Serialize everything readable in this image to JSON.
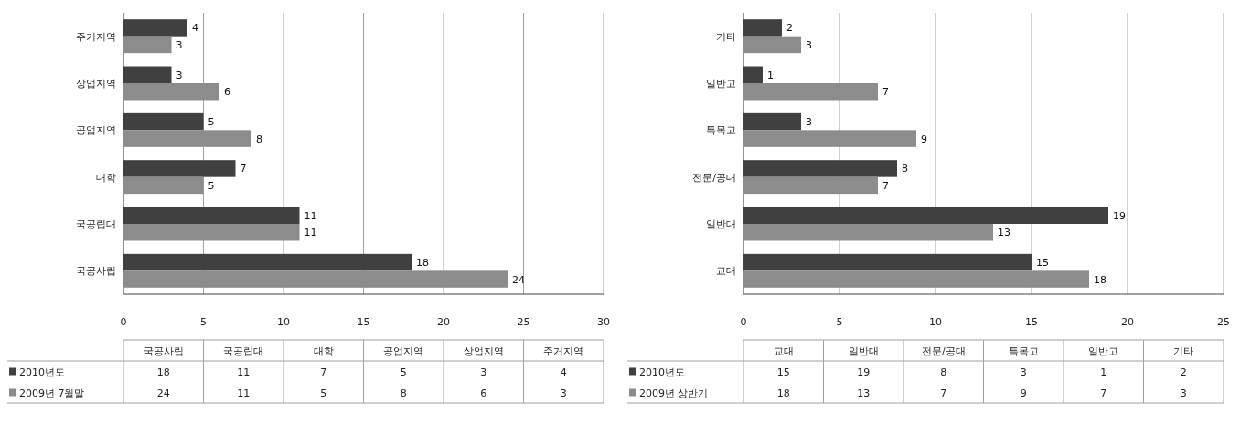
{
  "chart_data": [
    {
      "type": "bar",
      "orientation": "horizontal",
      "categories": [
        "주거지역",
        "상업지역",
        "공업지역",
        "대학",
        "국공립대",
        "국공사립"
      ],
      "series": [
        {
          "color": "#404040",
          "values": [
            4,
            3,
            5,
            7,
            11,
            18
          ]
        },
        {
          "color": "#8c8c8c",
          "values": [
            3,
            6,
            8,
            5,
            11,
            24
          ]
        }
      ],
      "xlim": [
        0,
        30
      ],
      "xticks": [
        0,
        5,
        10,
        15,
        20,
        25,
        30
      ],
      "grid": "x",
      "data_labels": true
    },
    {
      "type": "other",
      "categories": [
        "국공사립",
        "국공립대",
        "대학",
        "공업지역",
        "상업지역",
        "주거지역"
      ],
      "series": [
        {
          "name": "2010년도",
          "color": "#404040",
          "values": [
            18,
            11,
            7,
            5,
            3,
            4
          ]
        },
        {
          "name": "2009년 7월말",
          "color": "#8c8c8c",
          "values": [
            24,
            11,
            5,
            8,
            6,
            3
          ]
        }
      ],
      "data_labels": true,
      "legend": "bottom left"
    },
    {
      "type": "bar",
      "orientation": "horizontal",
      "categories": [
        "기타",
        "일반고",
        "특목고",
        "전문/공대",
        "일반대",
        "교대"
      ],
      "series": [
        {
          "color": "#404040",
          "values": [
            2,
            1,
            3,
            8,
            19,
            15
          ]
        },
        {
          "color": "#8c8c8c",
          "values": [
            3,
            7,
            9,
            7,
            13,
            18
          ]
        }
      ],
      "xlim": [
        0,
        25
      ],
      "xticks": [
        0,
        5,
        10,
        15,
        20,
        25
      ],
      "grid": "x",
      "data_labels": true
    },
    {
      "type": "other",
      "categories": [
        "교대",
        "일반대",
        "전문/공대",
        "특목고",
        "일반고",
        "기타"
      ],
      "series": [
        {
          "name": "2010년도",
          "color": "#404040",
          "values": [
            15,
            19,
            8,
            3,
            1,
            2
          ]
        },
        {
          "name": "2009년 상반기",
          "color": "#8c8c8c",
          "values": [
            18,
            13,
            7,
            9,
            7,
            3
          ]
        }
      ],
      "data_labels": true,
      "legend": "bottom left"
    }
  ]
}
